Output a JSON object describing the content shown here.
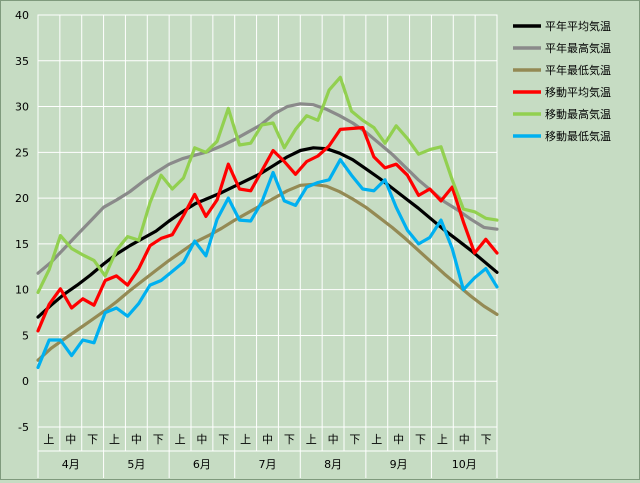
{
  "chart_data": {
    "type": "line",
    "title": "",
    "xlabel": "",
    "ylabel": "",
    "ylim": [
      -5,
      40
    ],
    "yticks": [
      -5,
      0,
      5,
      10,
      15,
      20,
      25,
      30,
      35,
      40
    ],
    "grid": true,
    "legend_position": "right",
    "months": [
      "4月",
      "5月",
      "6月",
      "7月",
      "8月",
      "9月",
      "10月"
    ],
    "decades": [
      "上",
      "中",
      "下"
    ],
    "x_start": "4月1日",
    "x_end": "10月31日",
    "series": [
      {
        "name": "平年平均気温",
        "color": "#000000",
        "values": [
          7.0,
          8.3,
          9.5,
          10.5,
          11.6,
          12.8,
          13.9,
          14.8,
          15.6,
          16.4,
          17.5,
          18.5,
          19.4,
          20.0,
          20.6,
          21.3,
          22.0,
          22.7,
          23.6,
          24.5,
          25.2,
          25.5,
          25.4,
          24.9,
          24.2,
          23.2,
          22.2,
          21.1,
          20.0,
          18.9,
          17.7,
          16.5,
          15.4,
          14.3,
          13.1,
          11.9
        ]
      },
      {
        "name": "平年最高気温",
        "color": "#8a8a8a",
        "values": [
          11.8,
          13.0,
          14.5,
          16.0,
          17.5,
          19.0,
          19.8,
          20.7,
          21.8,
          22.8,
          23.7,
          24.3,
          24.7,
          25.1,
          25.7,
          26.4,
          27.2,
          28.0,
          29.2,
          30.0,
          30.3,
          30.2,
          29.7,
          29.0,
          28.2,
          27.2,
          26.0,
          24.8,
          23.4,
          22.0,
          20.8,
          19.6,
          18.7,
          17.7,
          16.8,
          16.6
        ]
      },
      {
        "name": "平年最低気温",
        "color": "#948a54",
        "values": [
          2.3,
          3.6,
          4.6,
          5.6,
          6.6,
          7.6,
          8.7,
          9.9,
          11.0,
          12.1,
          13.2,
          14.2,
          15.2,
          15.9,
          16.7,
          17.6,
          18.4,
          19.2,
          20.0,
          20.8,
          21.4,
          21.5,
          21.3,
          20.7,
          19.9,
          19.0,
          17.9,
          16.8,
          15.6,
          14.3,
          13.0,
          11.7,
          10.5,
          9.3,
          8.2,
          7.3
        ]
      },
      {
        "name": "移動平均気温",
        "color": "#ff0000",
        "values": [
          5.5,
          8.4,
          10.1,
          8.0,
          9.0,
          8.3,
          11.0,
          11.5,
          10.5,
          12.3,
          14.8,
          15.6,
          16.0,
          18.1,
          20.4,
          18.0,
          19.8,
          23.7,
          21.0,
          20.8,
          23.0,
          25.2,
          24.0,
          22.6,
          24.0,
          24.6,
          25.7,
          27.5,
          27.6,
          27.7,
          24.5,
          23.3,
          23.7,
          22.5,
          20.3,
          21.0,
          19.7,
          21.2,
          17.4,
          14.0,
          15.5,
          14.0
        ]
      },
      {
        "name": "移動最高気温",
        "color": "#92d050",
        "values": [
          9.7,
          12.2,
          15.9,
          14.5,
          13.8,
          13.2,
          11.5,
          14.3,
          15.8,
          15.4,
          19.5,
          22.5,
          21.0,
          22.2,
          25.5,
          25.0,
          26.2,
          29.8,
          25.8,
          26.0,
          28.0,
          28.2,
          25.5,
          27.5,
          29.0,
          28.5,
          31.8,
          33.2,
          29.5,
          28.5,
          27.7,
          26.0,
          27.9,
          26.5,
          24.8,
          25.3,
          25.6,
          22.0,
          18.8,
          18.5,
          17.8,
          17.6
        ]
      },
      {
        "name": "移動最低気温",
        "color": "#00b0f0",
        "values": [
          1.5,
          4.5,
          4.5,
          2.8,
          4.5,
          4.2,
          7.5,
          8.0,
          7.1,
          8.5,
          10.5,
          11.0,
          12.0,
          13.0,
          15.3,
          13.7,
          17.7,
          20.0,
          17.6,
          17.5,
          19.6,
          22.8,
          19.7,
          19.2,
          21.2,
          21.7,
          22.0,
          24.2,
          22.5,
          21.0,
          20.8,
          22.0,
          19.0,
          16.5,
          15.0,
          15.7,
          17.6,
          14.5,
          10.0,
          11.3,
          12.3,
          10.3
        ]
      }
    ]
  }
}
